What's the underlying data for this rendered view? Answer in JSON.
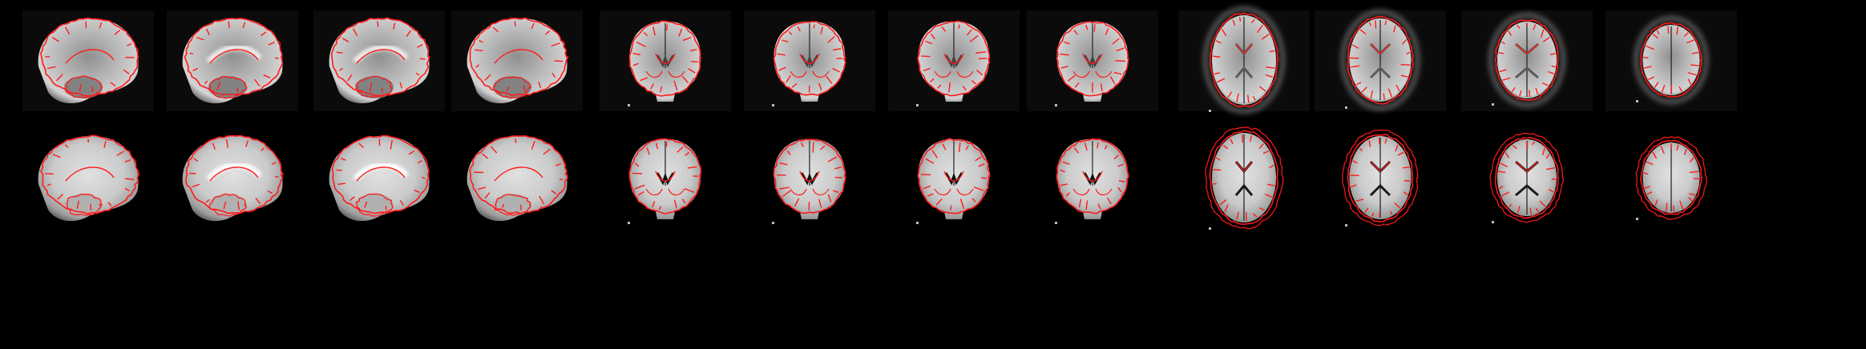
{
  "figure": {
    "background": "#000000",
    "contour_color": "#ff1a1a",
    "rows": [
      {
        "row_id": "functional-mean",
        "panels": [
          {
            "view": "sagittal",
            "slice": 1,
            "contrast": "epi"
          },
          {
            "view": "sagittal",
            "slice": 2,
            "contrast": "epi"
          },
          {
            "view": "sagittal",
            "slice": 3,
            "contrast": "epi"
          },
          {
            "view": "sagittal",
            "slice": 4,
            "contrast": "epi"
          },
          {
            "view": "coronal",
            "slice": 1,
            "contrast": "epi"
          },
          {
            "view": "coronal",
            "slice": 2,
            "contrast": "epi"
          },
          {
            "view": "coronal",
            "slice": 3,
            "contrast": "epi"
          },
          {
            "view": "coronal",
            "slice": 4,
            "contrast": "epi"
          },
          {
            "view": "axial",
            "slice": 1,
            "contrast": "epi"
          },
          {
            "view": "axial",
            "slice": 2,
            "contrast": "epi"
          },
          {
            "view": "axial",
            "slice": 3,
            "contrast": "epi"
          },
          {
            "view": "axial",
            "slice": 4,
            "contrast": "epi"
          }
        ]
      },
      {
        "row_id": "anatomical-template",
        "panels": [
          {
            "view": "sagittal",
            "slice": 1,
            "contrast": "t1"
          },
          {
            "view": "sagittal",
            "slice": 2,
            "contrast": "t1"
          },
          {
            "view": "sagittal",
            "slice": 3,
            "contrast": "t1"
          },
          {
            "view": "sagittal",
            "slice": 4,
            "contrast": "t1"
          },
          {
            "view": "coronal",
            "slice": 1,
            "contrast": "t1"
          },
          {
            "view": "coronal",
            "slice": 2,
            "contrast": "t1"
          },
          {
            "view": "coronal",
            "slice": 3,
            "contrast": "t1"
          },
          {
            "view": "coronal",
            "slice": 4,
            "contrast": "t1"
          },
          {
            "view": "axial",
            "slice": 1,
            "contrast": "t1"
          },
          {
            "view": "axial",
            "slice": 2,
            "contrast": "t1"
          },
          {
            "view": "axial",
            "slice": 3,
            "contrast": "t1"
          },
          {
            "view": "axial",
            "slice": 4,
            "contrast": "t1"
          }
        ]
      }
    ]
  }
}
